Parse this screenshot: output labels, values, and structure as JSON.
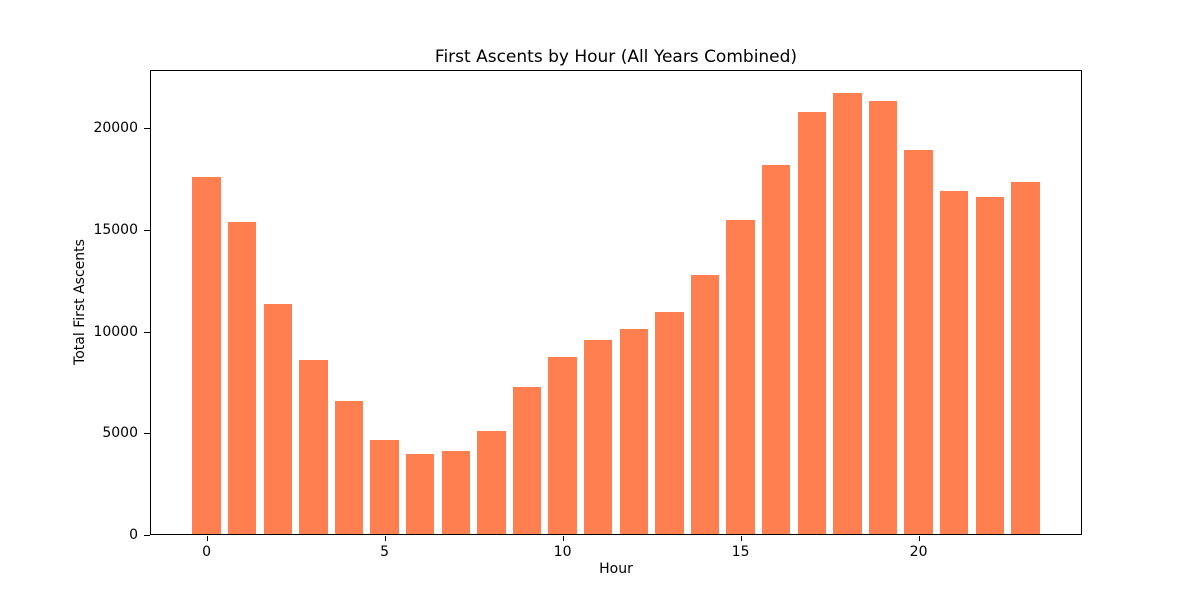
{
  "figure": {
    "background": "#ffffff",
    "text_color": "#000000",
    "spine_color": "#000000"
  },
  "chart_data": {
    "type": "bar",
    "title": "First Ascents by Hour (All Years Combined)",
    "xlabel": "Hour",
    "ylabel": "Total First Ascents",
    "categories": [
      0,
      1,
      2,
      3,
      4,
      5,
      6,
      7,
      8,
      9,
      10,
      11,
      12,
      13,
      14,
      15,
      16,
      17,
      18,
      19,
      20,
      21,
      22,
      23
    ],
    "values": [
      17550,
      15360,
      11310,
      8560,
      6560,
      4640,
      3930,
      4060,
      5080,
      7210,
      8690,
      9560,
      10080,
      10930,
      12750,
      15430,
      18150,
      20770,
      21690,
      21310,
      18900,
      16850,
      16560,
      17330
    ],
    "bar_color": "#ff7f50",
    "bar_width_fraction": 0.8,
    "xlim": [
      -1.59,
      24.59
    ],
    "ylim": [
      0,
      22870
    ],
    "x_ticks": [
      0,
      5,
      10,
      15,
      20
    ],
    "y_ticks": [
      0,
      5000,
      10000,
      15000,
      20000
    ],
    "grid": false,
    "legend": null
  }
}
